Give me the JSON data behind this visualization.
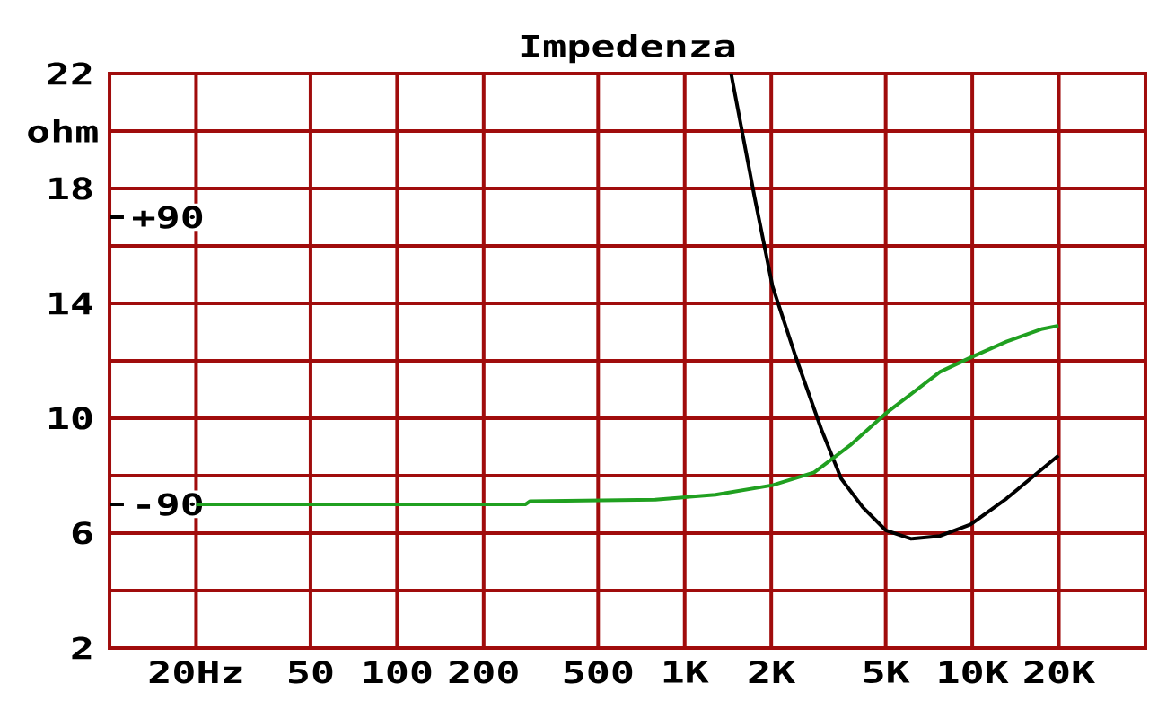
{
  "chart_data": {
    "type": "line",
    "title": "Impedenza",
    "ylabel": "ohm",
    "xlim": [
      10,
      40000
    ],
    "log": "x",
    "xticks": [
      {
        "value": 20,
        "label": "20Hz"
      },
      50,
      100,
      200,
      500,
      {
        "value": 1000,
        "label": "1K"
      },
      {
        "value": 2000,
        "label": "2K"
      },
      {
        "value": 5000,
        "label": "5K"
      },
      {
        "value": 10000,
        "label": "10K"
      },
      {
        "value": 20000,
        "label": "20K"
      }
    ],
    "ylim": [
      2,
      22
    ],
    "yticks": [
      2,
      {
        "value": 4,
        "label": null
      },
      6,
      {
        "value": 8,
        "label": null
      },
      10,
      {
        "value": 12,
        "label": null
      },
      14,
      {
        "value": 16,
        "label": null
      },
      18,
      {
        "value": 20,
        "label": null
      },
      22
    ],
    "y2lim": [
      -180,
      180
    ],
    "y2ticks": [
      {
        "value": 90,
        "label": "+90"
      },
      -90
    ],
    "grid": true,
    "series": [
      {
        "color": "#000000",
        "x": [
          1450,
          1750,
          2020,
          2440,
          2990,
          3500,
          4160,
          5000,
          6130,
          7720,
          9860,
          13150,
          19950
        ],
        "values": [
          22,
          17.7,
          14.6,
          12.1,
          9.6,
          7.9,
          6.9,
          6.1,
          5.8,
          5.9,
          6.3,
          7.2,
          8.7
        ]
      },
      {
        "color": "#20a020",
        "axis": "y2",
        "x": [
          20,
          280,
          290,
          790,
          1280,
          2020,
          2820,
          3760,
          5000,
          7720,
          9860,
          13150,
          17530,
          19950
        ],
        "values": [
          -90,
          -90,
          -88,
          -87,
          -84,
          -78,
          -70,
          -53,
          -33,
          -7,
          2,
          12,
          20,
          22
        ]
      }
    ]
  }
}
